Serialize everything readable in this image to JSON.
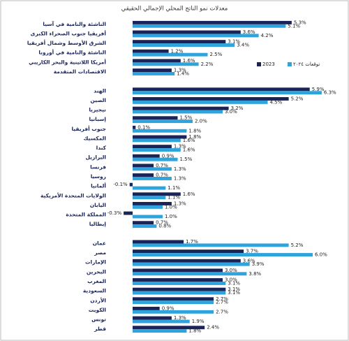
{
  "chart_data": {
    "type": "bar",
    "orientation": "horizontal",
    "title": "معدلات نمو الناتج المحلي الإجمالي الحقيقي",
    "categories": [
      "الناشئة والنامية في آسيا",
      "أفريقيا جنوب الصحراء الكبرى",
      "الشرق الأوسط وشمال أفريقيا",
      "الناشئة والنامية في أوروبا",
      "أمريكا اللاتينية والبحر الكاريبي",
      "الاقتصادات المتقدمة",
      null,
      "الهند",
      "الصين",
      "نيجيريا",
      "إسبانيا",
      "جنوب أفريقيا",
      "المكسيك",
      "كندا",
      "البرازيل",
      "فرنسا",
      "روسيا",
      "ألمانيا",
      "الولايات المتحدة الأمريكية",
      "اليابان",
      "المملكة المتحدة",
      "إيطاليا",
      null,
      "عمان",
      "مصر",
      "الإمارات",
      "البحرين",
      "المغرب",
      "السعودية",
      "الأردن",
      "الكويت",
      "تونس",
      "قطر"
    ],
    "series": [
      {
        "name": "2023",
        "color": "#1a2456",
        "values": [
          5.3,
          3.6,
          3.1,
          1.2,
          1.6,
          1.3,
          null,
          5.9,
          5.2,
          3.2,
          1.5,
          0.1,
          1.8,
          1.3,
          0.9,
          0.7,
          0.7,
          -0.1,
          1.6,
          1.3,
          -0.3,
          0.7,
          null,
          1.7,
          3.7,
          3.6,
          3.0,
          3.0,
          3.1,
          2.7,
          0.9,
          1.3,
          2.4
        ],
        "value_labels": [
          "5.3%",
          "3.6%",
          "3.1%",
          "1.2%",
          "1.6%",
          "1.3%",
          null,
          "5.9%",
          "5.2%",
          "3.2%",
          "1.5%",
          "0.1%",
          "1.8%",
          "1.3%",
          "0.9%",
          "0.7%",
          "0.7%",
          "-0.1%",
          "1.6%",
          "1.3%",
          "-0.3%",
          "0.7%",
          null,
          "1.7%",
          "3.7%",
          "3.6%",
          "3.0%",
          "3.0%",
          "3.1%",
          "2.7%",
          "0.9%",
          "1.3%",
          "2.4%"
        ]
      },
      {
        "name": "توقعات ٢٠٢٤",
        "color": "#2ea3dc",
        "values": [
          5.1,
          4.2,
          3.4,
          2.5,
          2.2,
          1.4,
          null,
          6.3,
          4.5,
          3.0,
          2.0,
          1.8,
          1.6,
          1.6,
          1.5,
          1.3,
          1.3,
          1.1,
          1.1,
          1.0,
          1.0,
          0.8,
          null,
          5.2,
          6.0,
          3.9,
          3.8,
          3.1,
          3.1,
          2.7,
          2.7,
          1.9,
          1.8
        ],
        "value_labels": [
          "5.1%",
          "4.2%",
          "3.4%",
          "2.5%",
          "2.2%",
          "1.4%",
          null,
          "6.3%",
          "4.5%",
          "3.0%",
          "2.0%",
          "1.8%",
          "1.6%",
          "1.6%",
          "1.5%",
          "1.3%",
          "1.3%",
          "1.1%",
          "1.1%",
          "1.0%",
          "1.0%",
          "0.8%",
          null,
          "5.2%",
          "6.0%",
          "3.9%",
          "3.8%",
          "3.1%",
          "3.1%",
          "2.7%",
          "2.7%",
          "1.9%",
          "1.8%"
        ]
      }
    ]
  }
}
